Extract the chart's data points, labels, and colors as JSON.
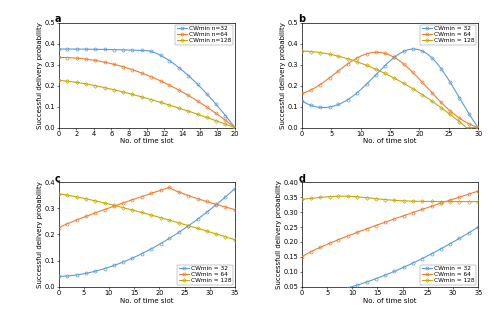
{
  "colors": {
    "32": "#5B9BD5",
    "64": "#ED7D31",
    "128": "#C8A800"
  },
  "legend_labels_a": {
    "32": "CWmin n=32",
    "64": "CWmin n=64",
    "128": "CWmin n=128"
  },
  "legend_labels_bcd": {
    "32": "CWmin = 32",
    "64": "CWmin = 64",
    "128": "CWmin = 128"
  },
  "subplot_a": {
    "xlabel": "No. of time slot",
    "ylabel": "Successful delivery probability",
    "xlim": [
      0,
      20
    ],
    "ylim": [
      0,
      0.5
    ],
    "xticks": [
      0,
      2,
      4,
      6,
      8,
      10,
      12,
      14,
      16,
      18,
      20
    ],
    "yticks": [
      0,
      0.1,
      0.2,
      0.3,
      0.4,
      0.5
    ],
    "legend_loc": "upper right"
  },
  "subplot_b": {
    "xlabel": "No. of time slot",
    "ylabel": "Successful delivery probability",
    "xlim": [
      0,
      30
    ],
    "ylim": [
      0,
      0.5
    ],
    "xticks": [
      0,
      5,
      10,
      15,
      20,
      25,
      30
    ],
    "yticks": [
      0,
      0.1,
      0.2,
      0.3,
      0.4,
      0.5
    ],
    "legend_loc": "upper right"
  },
  "subplot_c": {
    "xlabel": "No. of time slot",
    "ylabel": "Successful delivery probability",
    "xlim": [
      0,
      35
    ],
    "ylim": [
      0,
      0.4
    ],
    "xticks": [
      0,
      5,
      10,
      15,
      20,
      25,
      30,
      35
    ],
    "yticks": [
      0,
      0.1,
      0.2,
      0.3,
      0.4
    ],
    "legend_loc": "lower right"
  },
  "subplot_d": {
    "xlabel": "No. of time slot",
    "ylabel": "Successfull delivery probability",
    "xlim": [
      0,
      35
    ],
    "ylim": [
      0.05,
      0.4
    ],
    "xticks": [
      0,
      5,
      10,
      15,
      20,
      25,
      30,
      35
    ],
    "yticks": [
      0.05,
      0.1,
      0.15,
      0.2,
      0.25,
      0.3,
      0.35,
      0.4
    ],
    "legend_loc": "lower right"
  },
  "background_color": "#FFFFFF",
  "line_width": 0.8,
  "marker_size": 2.2,
  "font_size": 7,
  "label_font_size": 5.0,
  "tick_font_size": 4.8,
  "legend_font_size": 4.2
}
